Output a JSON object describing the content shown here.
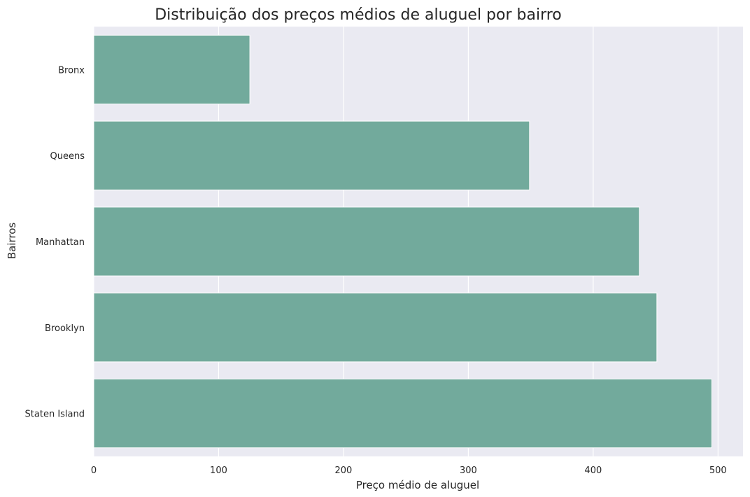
{
  "chart_data": {
    "type": "bar",
    "orientation": "horizontal",
    "title": "Distribuição dos preços médios de aluguel por bairro",
    "xlabel": "Preço médio de aluguel",
    "ylabel": "Bairros",
    "categories": [
      "Bronx",
      "Queens",
      "Manhattan",
      "Brooklyn",
      "Staten Island"
    ],
    "values": [
      125,
      349,
      437,
      451,
      495
    ],
    "xlim": [
      0,
      520
    ],
    "xticks": [
      0,
      100,
      200,
      300,
      400,
      500
    ],
    "grid": true,
    "colors": {
      "bar": "#72aa9c",
      "plot_background": "#eaeaf2",
      "grid": "#ffffff"
    }
  }
}
